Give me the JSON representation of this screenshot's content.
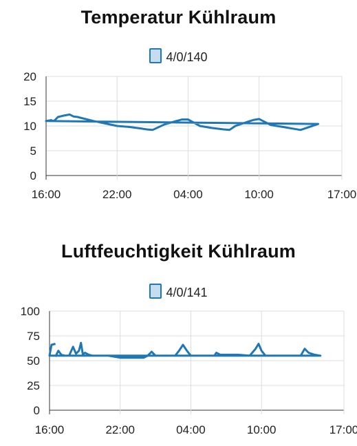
{
  "charts": [
    {
      "title": "Temperatur Kühlraum",
      "legend_label": "4/0/140",
      "color": "#1f77b4"
    },
    {
      "title": "Luftfeuchtigkeit Kühlraum",
      "legend_label": "4/0/141",
      "color": "#1f77b4"
    }
  ],
  "chart_data": [
    {
      "type": "line",
      "title": "Temperatur Kühlraum",
      "xlabel": "",
      "ylabel": "",
      "x_tick_labels": [
        "16:00",
        "22:00",
        "04:00",
        "10:00",
        "17:00"
      ],
      "y_tick_labels": [
        "0",
        "5",
        "10",
        "15",
        "20"
      ],
      "xlim": [
        "16:00",
        "17:00 (+1 day)"
      ],
      "ylim": [
        0,
        20
      ],
      "grid": true,
      "legend": "top-center",
      "series": [
        {
          "name": "4/0/140",
          "x": [
            "16:20",
            "16:40",
            "17:00",
            "17:30",
            "18:00",
            "18:20",
            "18:40",
            "19:00",
            "20:00",
            "21:00",
            "22:00",
            "23:00",
            "00:00",
            "00:30",
            "01:00",
            "02:00",
            "03:00",
            "03:30",
            "04:00",
            "05:00",
            "06:00",
            "07:00",
            "07:30",
            "08:00",
            "09:00",
            "09:30",
            "10:00",
            "11:00",
            "12:00",
            "13:00",
            "13:30",
            "14:00",
            "15:00",
            "16:00",
            "16:30"
          ],
          "y": [
            11.2,
            11.0,
            11.8,
            12.1,
            12.3,
            11.9,
            11.8,
            11.6,
            11.0,
            10.5,
            10.0,
            9.8,
            9.5,
            9.3,
            9.2,
            10.3,
            11.0,
            11.3,
            11.3,
            10.0,
            9.6,
            9.3,
            9.2,
            10.0,
            10.8,
            11.2,
            11.4,
            10.2,
            9.8,
            9.4,
            9.2,
            9.6,
            10.4,
            11.0,
            11.2
          ]
        }
      ]
    },
    {
      "type": "line",
      "title": "Luftfeuchtigkeit Kühlraum",
      "xlabel": "",
      "ylabel": "",
      "x_tick_labels": [
        "16:00",
        "22:00",
        "04:00",
        "10:00",
        "17:00"
      ],
      "y_tick_labels": [
        "0",
        "25",
        "50",
        "75",
        "100"
      ],
      "xlim": [
        "16:00",
        "17:00 (+1 day)"
      ],
      "ylim": [
        0,
        100
      ],
      "grid": true,
      "legend": "top-center",
      "series": [
        {
          "name": "4/0/141",
          "x": [
            "16:30",
            "16:45",
            "17:00",
            "17:20",
            "17:40",
            "18:00",
            "18:15",
            "18:30",
            "18:40",
            "18:50",
            "19:00",
            "19:20",
            "19:40",
            "20:00",
            "21:00",
            "22:00",
            "23:00",
            "00:00",
            "00:20",
            "00:40",
            "01:00",
            "02:00",
            "02:40",
            "03:00",
            "03:20",
            "03:40",
            "04:00",
            "05:00",
            "06:00",
            "06:10",
            "06:30",
            "07:00",
            "08:00",
            "09:00",
            "09:30",
            "09:45",
            "10:00",
            "10:20",
            "10:40",
            "11:00",
            "12:00",
            "13:00",
            "13:20",
            "13:40",
            "14:00",
            "14:30",
            "15:00",
            "16:00",
            "16:10",
            "16:30"
          ],
          "y": [
            54,
            60,
            56,
            55,
            55,
            64,
            57,
            60,
            68,
            56,
            58,
            56,
            55,
            55,
            55,
            53,
            53,
            53,
            55,
            59,
            55,
            55,
            55,
            60,
            66,
            60,
            55,
            55,
            55,
            58,
            56,
            56,
            56,
            55,
            62,
            67,
            60,
            55,
            55,
            55,
            55,
            55,
            55,
            62,
            58,
            56,
            55,
            55,
            66,
            67
          ]
        }
      ]
    }
  ]
}
